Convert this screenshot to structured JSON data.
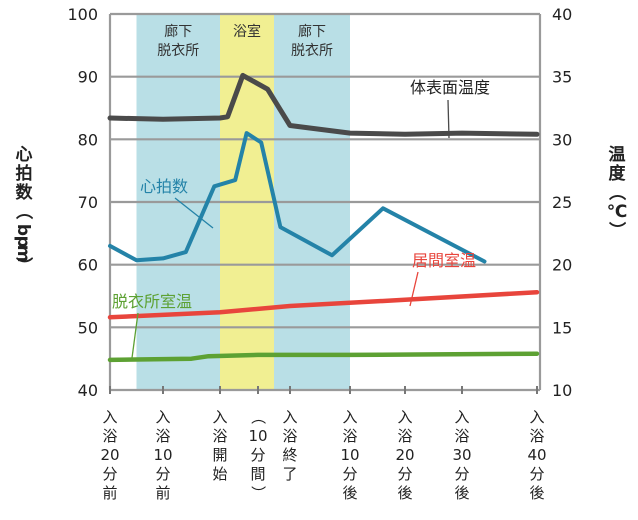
{
  "chart_data": {
    "type": "line",
    "x_categories": [
      "入浴20分前",
      "入浴10分前",
      "入浴開始",
      "（10分間）",
      "入浴終了",
      "入浴10分後",
      "入浴20分後",
      "入浴30分後",
      "入浴40分後"
    ],
    "zones": [
      {
        "label_lines": [
          "廊下",
          "脱衣所"
        ],
        "from": 0.5,
        "to": 2.0,
        "color": "#b9dfe6"
      },
      {
        "label_lines": [
          "浴室"
        ],
        "from": 2.0,
        "to": 3.5,
        "color": "#f1ef92"
      },
      {
        "label_lines": [
          "廊下",
          "脱衣所"
        ],
        "from": 3.5,
        "to": 5.0,
        "color": "#b9dfe6"
      }
    ],
    "y_left": {
      "label": "心拍数（bpm）",
      "min": 40,
      "max": 100,
      "ticks": [
        40,
        50,
        60,
        70,
        80,
        90,
        100
      ]
    },
    "y_right": {
      "label": "温度（℃）",
      "min": 10,
      "max": 40,
      "ticks": [
        10,
        15,
        20,
        25,
        30,
        35,
        40
      ]
    },
    "grid": true,
    "series": [
      {
        "name": "体表面温度",
        "axis": "right",
        "color": "#4a4a4a",
        "points": [
          [
            0,
            31.7
          ],
          [
            1.0,
            31.6
          ],
          [
            2.0,
            31.7
          ],
          [
            2.2,
            31.8
          ],
          [
            2.6,
            35.1
          ],
          [
            3.3,
            34.0
          ],
          [
            4.0,
            31.1
          ],
          [
            5.0,
            30.5
          ],
          [
            6.0,
            30.4
          ],
          [
            7.0,
            30.5
          ],
          [
            8.0,
            30.4
          ]
        ]
      },
      {
        "name": "心拍数",
        "axis": "left",
        "color": "#2483a8",
        "points": [
          [
            0,
            63
          ],
          [
            0.5,
            60.7
          ],
          [
            1.0,
            61
          ],
          [
            1.4,
            62
          ],
          [
            1.9,
            72.5
          ],
          [
            2.4,
            73.5
          ],
          [
            2.7,
            81
          ],
          [
            3.1,
            79.5
          ],
          [
            3.7,
            66
          ],
          [
            4.7,
            61.5
          ],
          [
            5.6,
            69
          ],
          [
            7.3,
            60.5
          ]
        ]
      },
      {
        "name": "居間室温",
        "axis": "right",
        "color": "#e8453c",
        "points": [
          [
            0,
            15.8
          ],
          [
            2.0,
            16.2
          ],
          [
            4.0,
            16.7
          ],
          [
            6.0,
            17.2
          ],
          [
            8.0,
            17.8
          ]
        ]
      },
      {
        "name": "脱衣所室温",
        "axis": "right",
        "color": "#5da133",
        "points": [
          [
            0,
            12.4
          ],
          [
            1.5,
            12.5
          ],
          [
            1.8,
            12.7
          ],
          [
            3.0,
            12.8
          ],
          [
            5.0,
            12.8
          ],
          [
            8.0,
            12.9
          ]
        ]
      }
    ]
  }
}
